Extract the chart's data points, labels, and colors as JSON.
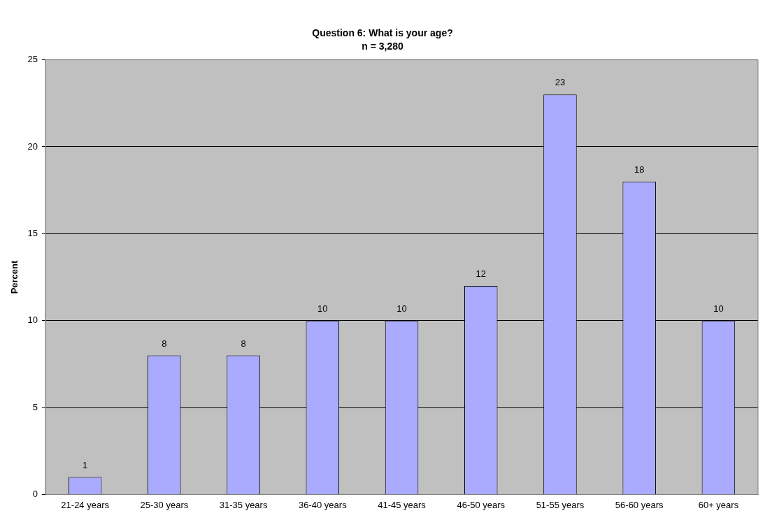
{
  "chart_data": {
    "type": "bar",
    "title": "Question 6: What is your age?",
    "subtitle": "n = 3,280",
    "ylabel": "Percent",
    "categories": [
      "21-24 years",
      "25-30 years",
      "31-35 years",
      "36-40 years",
      "41-45 years",
      "46-50 years",
      "51-55 years",
      "56-60 years",
      "60+ years"
    ],
    "values": [
      1,
      8,
      8,
      10,
      10,
      12,
      23,
      18,
      10
    ],
    "color": "#aaaaff",
    "ylim": [
      0,
      25
    ],
    "yticks": [
      0,
      5,
      10,
      15,
      20,
      25
    ],
    "grid": "y",
    "legend": false,
    "data_labels": true
  }
}
